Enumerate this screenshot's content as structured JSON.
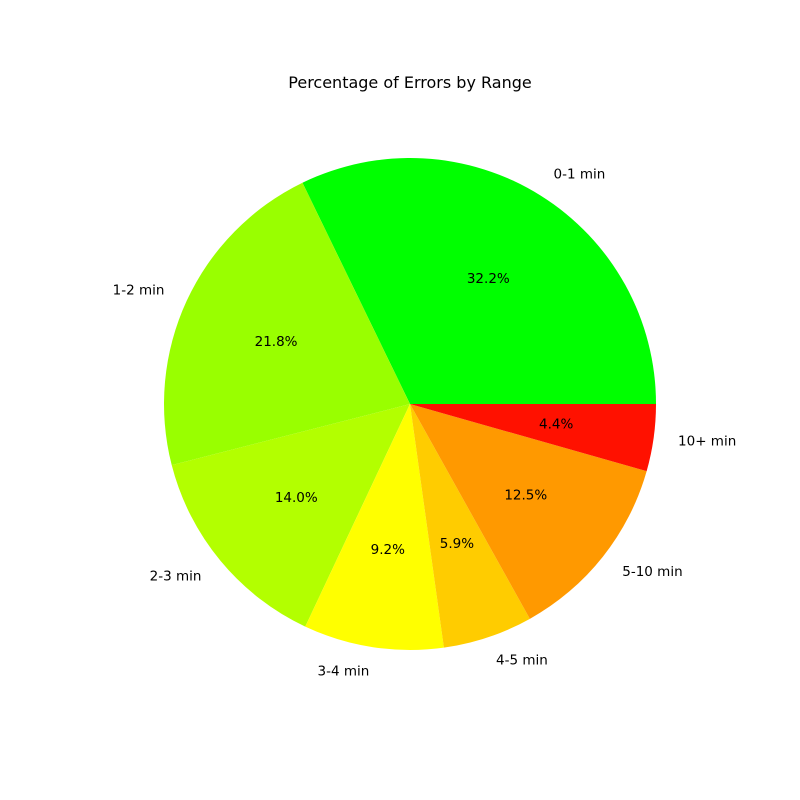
{
  "chart_data": {
    "type": "pie",
    "title": "Percentage of Errors by Range",
    "categories": [
      "0-1 min",
      "1-2 min",
      "2-3 min",
      "3-4 min",
      "4-5 min",
      "5-10 min",
      "10+ min"
    ],
    "values": [
      32.2,
      21.8,
      14.0,
      9.2,
      5.9,
      12.5,
      4.4
    ],
    "value_labels": [
      "32.2%",
      "21.8%",
      "14.0%",
      "9.2%",
      "5.9%",
      "12.5%",
      "4.4%"
    ],
    "colors": [
      "#00ff00",
      "#99ff00",
      "#b3ff00",
      "#ffff00",
      "#ffcc00",
      "#ff9900",
      "#ff1100"
    ],
    "start_angle": 0,
    "direction": "counterclockwise",
    "legend": "none"
  }
}
